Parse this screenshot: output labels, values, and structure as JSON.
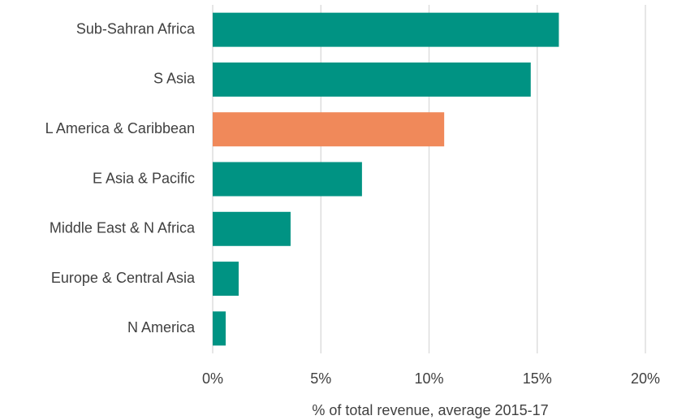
{
  "chart_data": {
    "type": "barh",
    "xlabel": "% of total revenue, average 2015-17",
    "categories": [
      "Sub-Sahran Africa",
      "S Asia",
      "L America & Caribbean",
      "E Asia & Pacific",
      "Middle East & N Africa",
      "Europe & Central Asia",
      "N America"
    ],
    "values": [
      16.0,
      14.7,
      10.7,
      6.9,
      3.6,
      1.2,
      0.6
    ],
    "colors": [
      "#009383",
      "#009383",
      "#f0895a",
      "#009383",
      "#009383",
      "#009383",
      "#009383"
    ],
    "xlim": [
      0,
      20
    ],
    "xticks": [
      {
        "value": 0,
        "label": "0%"
      },
      {
        "value": 5,
        "label": "5%"
      },
      {
        "value": 10,
        "label": "10%"
      },
      {
        "value": 15,
        "label": "15%"
      },
      {
        "value": 20,
        "label": "20%"
      }
    ],
    "grid": true
  }
}
